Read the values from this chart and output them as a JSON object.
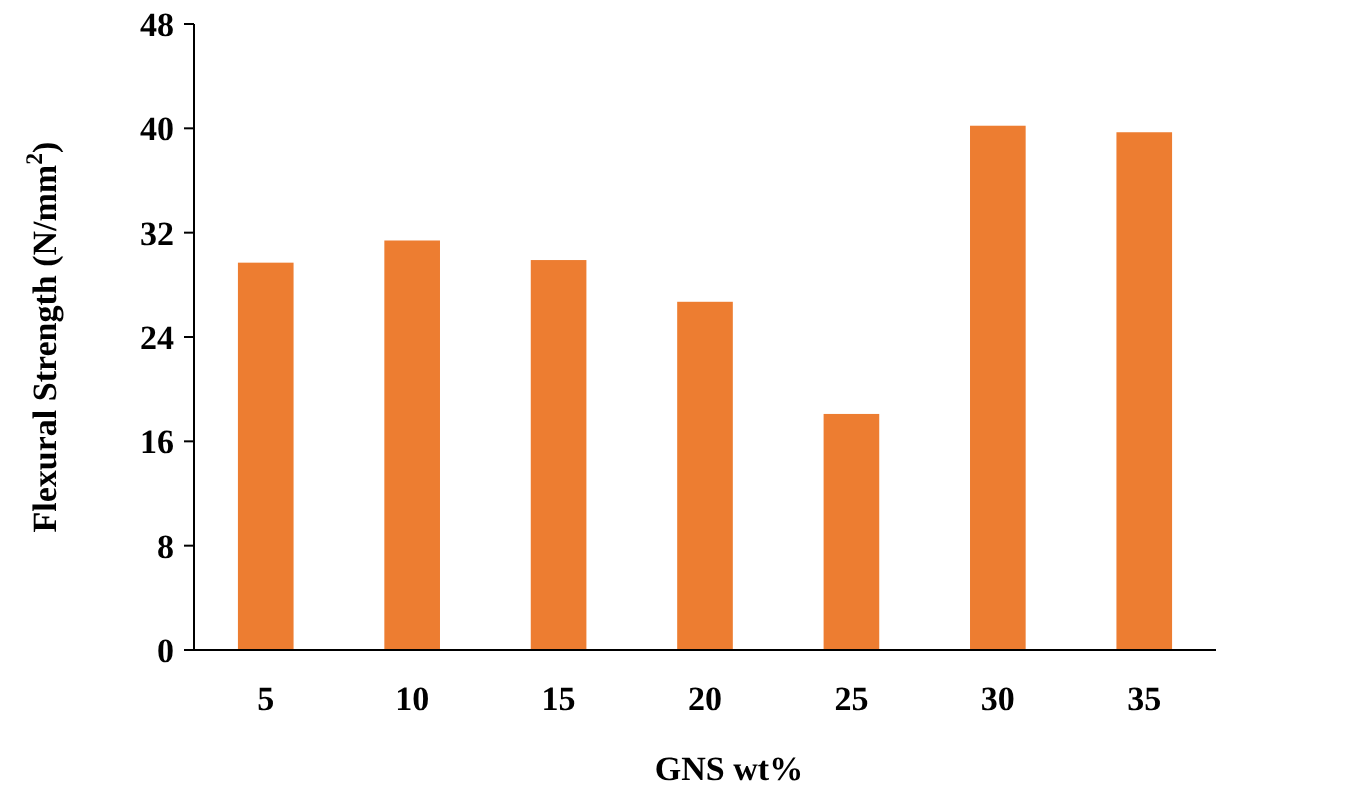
{
  "chart_data": {
    "type": "bar",
    "xlabel": "GNS wt%",
    "ylabel": "Flexural Strength (N/mm$^{2}$)",
    "categories": [
      "5",
      "10",
      "15",
      "20",
      "25",
      "30",
      "35"
    ],
    "values": [
      29.7,
      31.4,
      29.9,
      26.7,
      18.1,
      40.2,
      39.7
    ],
    "color": "#ed7d31",
    "ylim": [
      0,
      48
    ],
    "yticks": [
      0,
      8,
      16,
      24,
      32,
      40,
      48
    ],
    "grid": false
  }
}
